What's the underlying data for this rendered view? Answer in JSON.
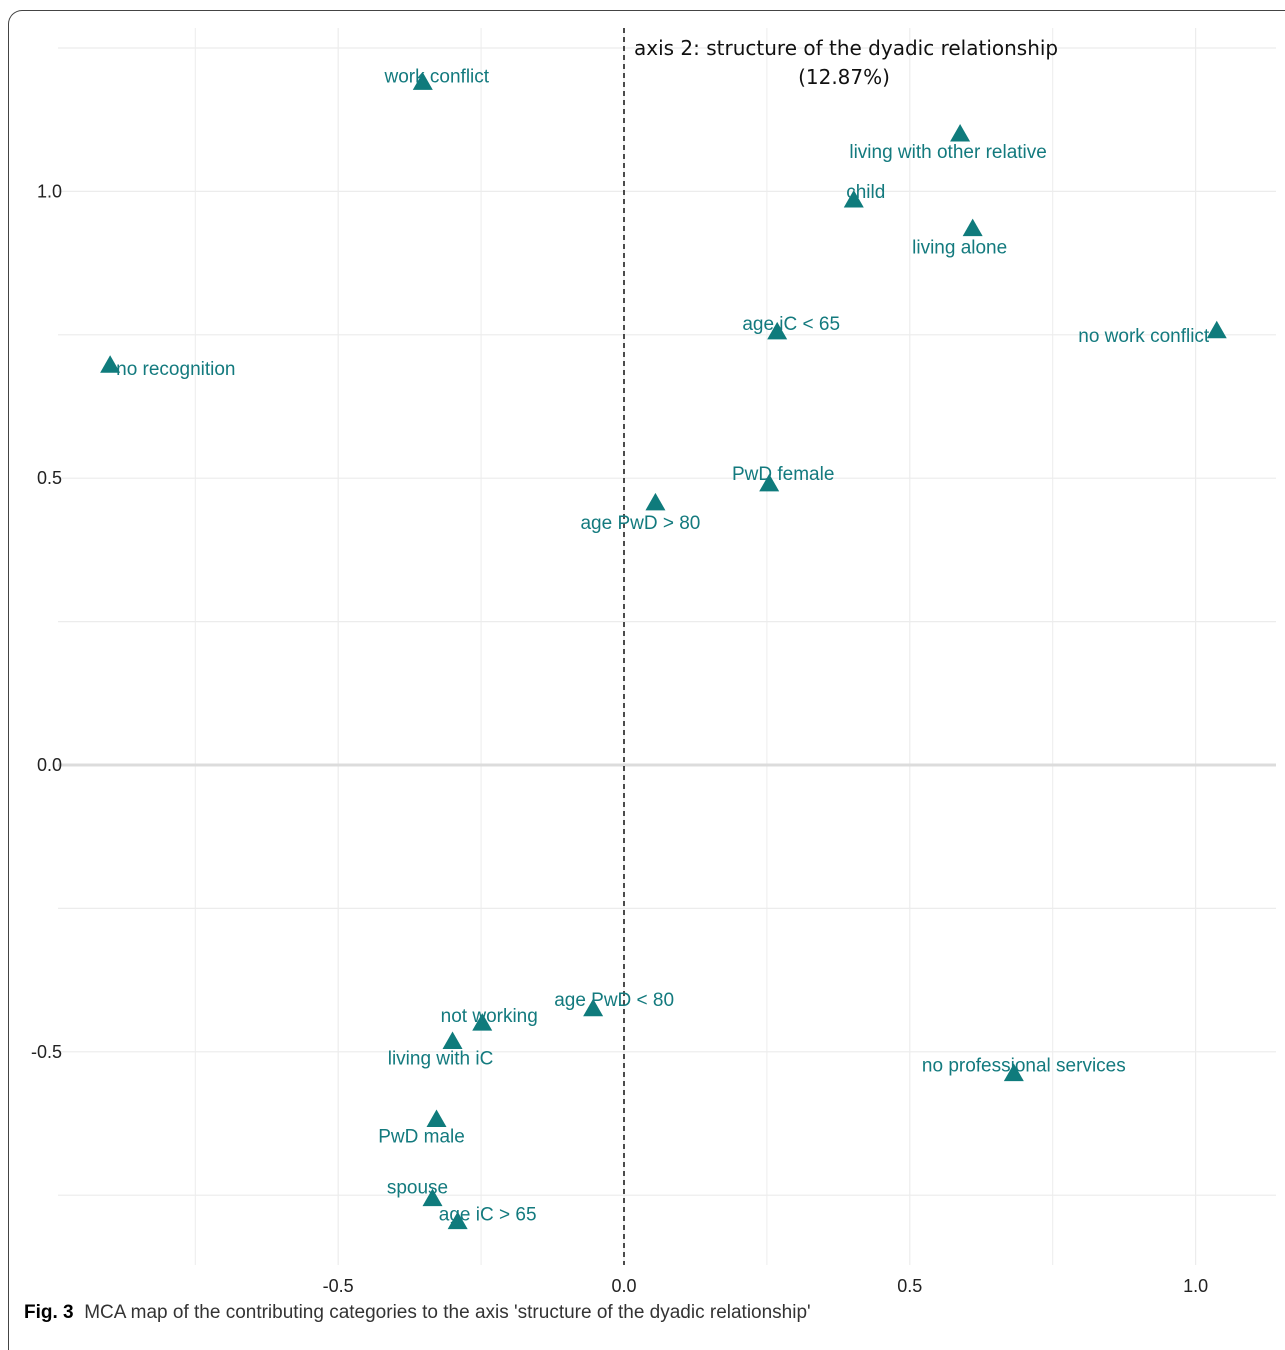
{
  "caption": {
    "label": "Fig. 3",
    "text": "MCA map of the contributing categories to the axis 'structure of the dyadic relationship'"
  },
  "colors": {
    "marker": "#0f7b7c",
    "label": "#137a7e",
    "grid": "#ececec",
    "zero_line": "#dcdcdc"
  },
  "chart_data": {
    "type": "scatter",
    "title": "",
    "axis_title_line1": "axis 2: structure of the dyadic relationship",
    "axis_title_line2": "(12.87%)",
    "xlim": [
      -0.99,
      1.14
    ],
    "ylim": [
      -0.86,
      1.29
    ],
    "x_ticks": [
      -0.5,
      0.0,
      0.5,
      1.0
    ],
    "x_tick_labels": [
      "-0.5",
      "0.0",
      "0.5",
      "1.0"
    ],
    "y_ticks": [
      -0.5,
      0.0,
      0.5,
      1.0
    ],
    "y_tick_labels": [
      "-0.5",
      "0.0",
      "0.5",
      "1.0"
    ],
    "grid": true,
    "points": [
      {
        "label": "work conflict",
        "x": -0.352,
        "y": 1.19
      },
      {
        "label": "living with other relative",
        "x": 0.588,
        "y": 1.1
      },
      {
        "label": "child",
        "x": 0.402,
        "y": 0.985
      },
      {
        "label": "living alone",
        "x": 0.61,
        "y": 0.935
      },
      {
        "label": "age iC < 65",
        "x": 0.268,
        "y": 0.755
      },
      {
        "label": "no work conflict",
        "x": 1.037,
        "y": 0.757
      },
      {
        "label": "no recognition",
        "x": -0.899,
        "y": 0.697
      },
      {
        "label": "PwD female",
        "x": 0.254,
        "y": 0.49
      },
      {
        "label": "age PwD > 80",
        "x": 0.055,
        "y": 0.457
      },
      {
        "label": "age PwD < 80",
        "x": -0.054,
        "y": -0.425
      },
      {
        "label": "not working",
        "x": -0.248,
        "y": -0.45
      },
      {
        "label": "living with iC",
        "x": -0.3,
        "y": -0.482
      },
      {
        "label": "no professional services",
        "x": 0.682,
        "y": -0.538
      },
      {
        "label": "PwD male",
        "x": -0.328,
        "y": -0.618
      },
      {
        "label": "spouse",
        "x": -0.335,
        "y": -0.756
      },
      {
        "label": "age iC > 65",
        "x": -0.291,
        "y": -0.796
      }
    ]
  }
}
